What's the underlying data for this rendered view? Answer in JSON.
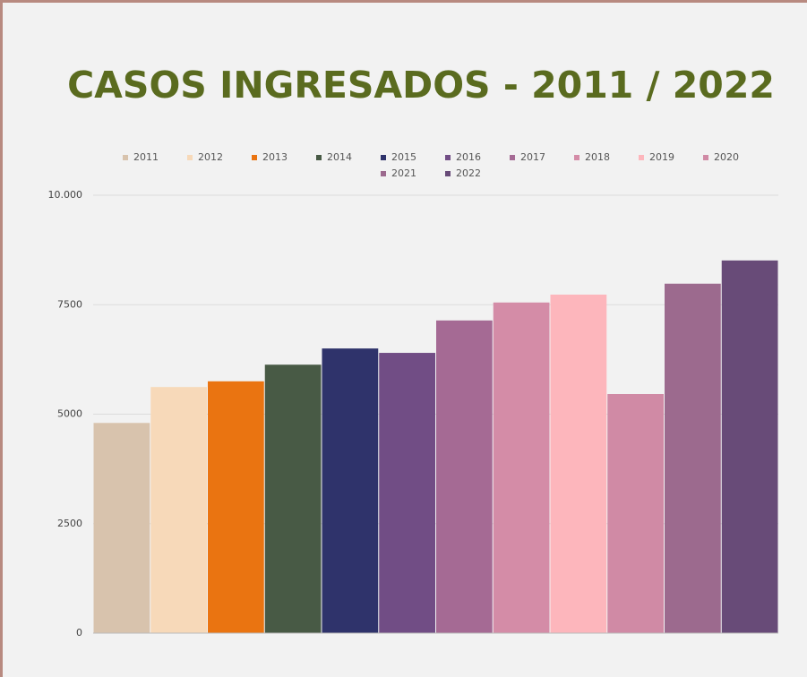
{
  "chart_data": {
    "type": "bar",
    "title": "CASOS INGRESADOS - 2011 / 2022",
    "series": [
      {
        "name": "2011",
        "color": "#d8c3ad",
        "values": [
          4800
        ]
      },
      {
        "name": "2012",
        "color": "#f7d9b9",
        "values": [
          5620
        ]
      },
      {
        "name": "2013",
        "color": "#ea7411",
        "values": [
          5750
        ]
      },
      {
        "name": "2014",
        "color": "#485a45",
        "values": [
          6130
        ]
      },
      {
        "name": "2015",
        "color": "#2f336b",
        "values": [
          6500
        ]
      },
      {
        "name": "2016",
        "color": "#714d85",
        "values": [
          6400
        ]
      },
      {
        "name": "2017",
        "color": "#a56a94",
        "values": [
          7140
        ]
      },
      {
        "name": "2018",
        "color": "#d48ca7",
        "values": [
          7550
        ]
      },
      {
        "name": "2019",
        "color": "#fdb6bc",
        "values": [
          7730
        ]
      },
      {
        "name": "2020",
        "color": "#d08aa5",
        "values": [
          5460
        ]
      },
      {
        "name": "2021",
        "color": "#9c6a8e",
        "values": [
          7980
        ]
      },
      {
        "name": "2022",
        "color": "#684b78",
        "values": [
          8510
        ]
      }
    ],
    "ylim": [
      0,
      10000
    ],
    "yticks": [
      0,
      2500,
      5000,
      7500,
      {
        "value": 10000,
        "label": "10.000"
      }
    ],
    "grid": true,
    "legend": "top"
  }
}
